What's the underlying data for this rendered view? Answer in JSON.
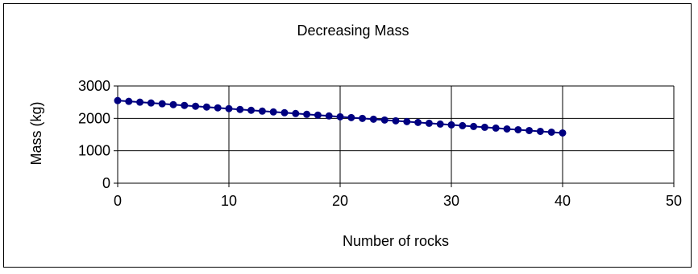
{
  "chart_data": {
    "type": "scatter",
    "title": "Decreasing Mass",
    "xlabel": "Number of rocks",
    "ylabel": "Mass (kg)",
    "xlim": [
      0,
      50
    ],
    "ylim": [
      0,
      3000
    ],
    "x_ticks": [
      0,
      10,
      20,
      30,
      40,
      50
    ],
    "y_ticks": [
      0,
      1000,
      2000,
      3000
    ],
    "grid": true,
    "legend": "none",
    "marker_color": "#000080",
    "line_color": "#000080",
    "series": [
      {
        "x": [
          0,
          1,
          2,
          3,
          4,
          5,
          6,
          7,
          8,
          9,
          10,
          11,
          12,
          13,
          14,
          15,
          16,
          17,
          18,
          19,
          20,
          21,
          22,
          23,
          24,
          25,
          26,
          27,
          28,
          29,
          30,
          31,
          32,
          33,
          34,
          35,
          36,
          37,
          38,
          39,
          40
        ],
        "y": [
          2550,
          2525,
          2500,
          2475,
          2450,
          2425,
          2400,
          2375,
          2350,
          2325,
          2300,
          2275,
          2250,
          2225,
          2200,
          2175,
          2150,
          2125,
          2100,
          2075,
          2050,
          2025,
          2000,
          1975,
          1950,
          1925,
          1900,
          1875,
          1850,
          1825,
          1800,
          1775,
          1750,
          1725,
          1700,
          1675,
          1650,
          1625,
          1600,
          1575,
          1550
        ]
      }
    ]
  }
}
